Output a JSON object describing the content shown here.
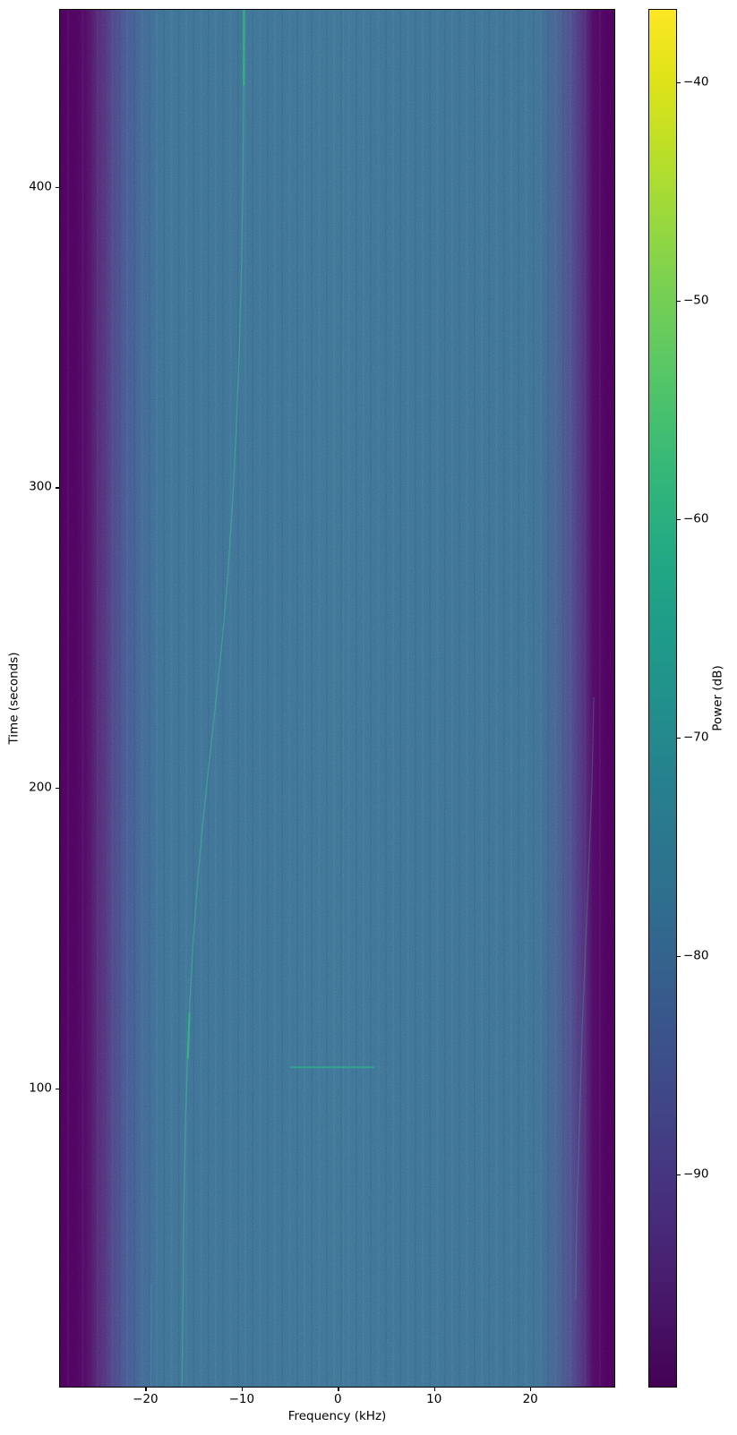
{
  "figure": {
    "background_color": "#ffffff",
    "kind": "spectrogram waterfall plot"
  },
  "chart_data": {
    "type": "heatmap",
    "title": "",
    "xlabel": "Frequency (kHz)",
    "ylabel": "Time (seconds)",
    "xlim": [
      -28.88,
      28.73
    ],
    "ylim": [
      0.75,
      458.85
    ],
    "xticks": {
      "values": [
        -20,
        -10,
        0,
        10,
        20
      ],
      "labels": [
        "−20",
        "−10",
        "0",
        "10",
        "20"
      ]
    },
    "yticks": {
      "values": [
        100,
        200,
        300,
        400
      ],
      "labels": [
        "100",
        "200",
        "300",
        "400"
      ]
    },
    "grid": false,
    "legend": false,
    "colorbar": {
      "label": "Power (dB)",
      "clim": [
        -99.7,
        -36.7
      ],
      "ticks": {
        "values": [
          -40,
          -50,
          -60,
          -70,
          -80,
          -90
        ],
        "labels": [
          "−40",
          "−50",
          "−60",
          "−70",
          "−80",
          "−90"
        ]
      },
      "cmap": "viridis",
      "cmap_stops": [
        [
          0.0,
          "#440154"
        ],
        [
          0.05,
          "#471365"
        ],
        [
          0.1,
          "#482475"
        ],
        [
          0.15,
          "#463480"
        ],
        [
          0.2,
          "#414487"
        ],
        [
          0.25,
          "#3b528b"
        ],
        [
          0.3,
          "#35608d"
        ],
        [
          0.35,
          "#2f6e8e"
        ],
        [
          0.4,
          "#2a788e"
        ],
        [
          0.45,
          "#25838e"
        ],
        [
          0.5,
          "#21918c"
        ],
        [
          0.55,
          "#1e9c89"
        ],
        [
          0.6,
          "#22a884"
        ],
        [
          0.65,
          "#2fb47c"
        ],
        [
          0.7,
          "#44bf70"
        ],
        [
          0.75,
          "#5ec962"
        ],
        [
          0.8,
          "#7ad151"
        ],
        [
          0.85,
          "#9bd93c"
        ],
        [
          0.9,
          "#bddf26"
        ],
        [
          0.95,
          "#dfe318"
        ],
        [
          1.0,
          "#fde725"
        ]
      ]
    },
    "heatmap": {
      "description": "Wideband receiver noise floor near -80 dB (steel blue) with dark purple band-edge roll-off on both frequency edges; fine teal and dark speckle noise and subtle vertical banding.",
      "background_level_db": -80,
      "edge_level_db": -99,
      "signal_band_khz": [
        -26.3,
        26.3
      ],
      "horizontal_profile_stops": [
        [
          0.0,
          "#440154"
        ],
        [
          0.031,
          "#440456"
        ],
        [
          0.045,
          "#46075a"
        ],
        [
          0.08,
          "#472a76"
        ],
        [
          0.11,
          "#3e4989"
        ],
        [
          0.15,
          "#355e8d"
        ],
        [
          0.185,
          "#32688e"
        ],
        [
          0.5,
          "#336a8e"
        ],
        [
          0.86,
          "#32688e"
        ],
        [
          0.905,
          "#3c5287"
        ],
        [
          0.935,
          "#45337e"
        ],
        [
          0.962,
          "#46085c"
        ],
        [
          0.985,
          "#440254"
        ],
        [
          1.0,
          "#440154"
        ]
      ]
    },
    "features": [
      {
        "name": "drifting-carrier-trace",
        "points": [
          [
            458.8,
            -9.77
          ],
          [
            430,
            -9.8
          ],
          [
            400,
            -9.87
          ],
          [
            372,
            -10.02
          ],
          [
            345,
            -10.25
          ],
          [
            320,
            -10.55
          ],
          [
            295,
            -10.95
          ],
          [
            270,
            -11.45
          ],
          [
            248,
            -12.05
          ],
          [
            228,
            -12.7
          ],
          [
            208,
            -13.4
          ],
          [
            188,
            -14.05
          ],
          [
            168,
            -14.6
          ],
          [
            148,
            -15.05
          ],
          [
            128,
            -15.4
          ],
          [
            108,
            -15.65
          ],
          [
            88,
            -15.85
          ],
          [
            60,
            -16.0
          ],
          [
            30,
            -16.1
          ],
          [
            1,
            -16.2
          ]
        ],
        "color": "#3fbf8f",
        "width": 1.4,
        "opacity": 0.5
      },
      {
        "name": "carrier-bright-segment-top",
        "points": [
          [
            458.8,
            -9.77
          ],
          [
            434,
            -9.78
          ]
        ],
        "color": "#31b57b",
        "width": 2.2,
        "opacity": 0.95
      },
      {
        "name": "carrier-bright-segment-low",
        "points": [
          [
            125,
            -15.42
          ],
          [
            110,
            -15.6
          ]
        ],
        "color": "#34b77c",
        "width": 2.2,
        "opacity": 0.9
      },
      {
        "name": "horizontal-burst",
        "points": [
          [
            107,
            -4.85
          ],
          [
            107,
            3.7
          ]
        ],
        "color": "#2fae8e",
        "width": 2.0,
        "opacity": 0.8
      },
      {
        "name": "center-dc-line",
        "points": [
          [
            458.8,
            0.55
          ],
          [
            1,
            0.55
          ]
        ],
        "color": "#3fae9b",
        "width": 1.2,
        "opacity": 0.2
      },
      {
        "name": "right-edge-drift",
        "points": [
          [
            230,
            26.6
          ],
          [
            201,
            26.4
          ],
          [
            160,
            25.9
          ],
          [
            120,
            25.4
          ],
          [
            61,
            24.85
          ],
          [
            30,
            24.7
          ]
        ],
        "color": "#4fae8e",
        "width": 1.3,
        "opacity": 0.33
      },
      {
        "name": "left-edge-faint-line",
        "points": [
          [
            35,
            -19.4
          ],
          [
            1,
            -19.45
          ]
        ],
        "color": "#4fae8e",
        "width": 1.2,
        "opacity": 0.3
      }
    ]
  }
}
